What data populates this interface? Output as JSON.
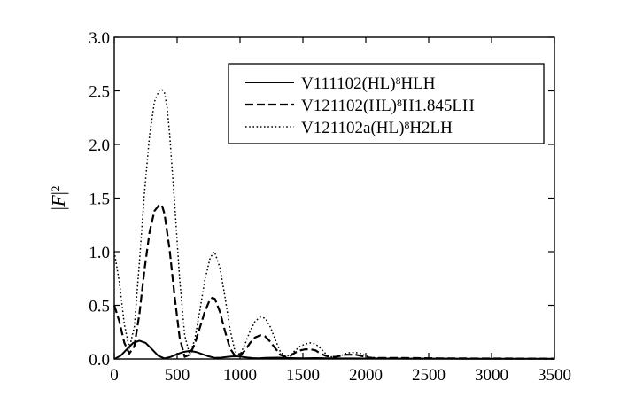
{
  "chart_data": {
    "type": "line",
    "title": "",
    "xlabel": "",
    "ylabel": {
      "parts": [
        {
          "text": "|",
          "italic": false,
          "sup": false
        },
        {
          "text": "F",
          "italic": true,
          "sup": false
        },
        {
          "text": "|",
          "italic": false,
          "sup": false
        },
        {
          "text": "2",
          "italic": false,
          "sup": true
        }
      ]
    },
    "xlim": [
      0,
      3500
    ],
    "ylim": [
      0,
      3.0
    ],
    "xticks": [
      "0",
      "500",
      "1000",
      "1500",
      "2000",
      "2500",
      "3000",
      "3500"
    ],
    "yticks": [
      "0.0",
      "0.5",
      "1.0",
      "1.5",
      "2.0",
      "2.5",
      "3.0"
    ],
    "grid": false,
    "legend_position": "top-right",
    "series": [
      {
        "name": {
          "parts": [
            {
              "text": "V111102(HL)",
              "sup": false
            },
            {
              "text": "8",
              "sup": true
            },
            {
              "text": "HLH",
              "sup": false
            }
          ]
        },
        "style": "solid",
        "x": [
          0,
          50,
          100,
          150,
          200,
          250,
          300,
          350,
          400,
          450,
          500,
          550,
          600,
          650,
          700,
          750,
          800,
          850,
          900,
          950,
          1000,
          1050,
          1100,
          1150,
          1200,
          1300,
          1400,
          1500,
          1600,
          1700,
          1800,
          1900,
          2000,
          2200,
          2400,
          2600,
          2800,
          3000,
          3200,
          3500
        ],
        "y": [
          0.0,
          0.03,
          0.09,
          0.15,
          0.17,
          0.15,
          0.09,
          0.03,
          0.005,
          0.02,
          0.045,
          0.065,
          0.075,
          0.065,
          0.045,
          0.025,
          0.01,
          0.012,
          0.02,
          0.025,
          0.022,
          0.015,
          0.008,
          0.006,
          0.01,
          0.012,
          0.008,
          0.006,
          0.008,
          0.006,
          0.005,
          0.005,
          0.004,
          0.004,
          0.003,
          0.003,
          0.002,
          0.002,
          0.002,
          0.002
        ]
      },
      {
        "name": {
          "parts": [
            {
              "text": "V121102(HL)",
              "sup": false
            },
            {
              "text": "8",
              "sup": true
            },
            {
              "text": "H1.845LH",
              "sup": false
            }
          ]
        },
        "style": "dashed",
        "x": [
          0,
          40,
          80,
          120,
          160,
          200,
          240,
          280,
          320,
          360,
          380,
          400,
          440,
          480,
          520,
          560,
          600,
          640,
          680,
          720,
          760,
          780,
          800,
          840,
          880,
          920,
          960,
          1000,
          1040,
          1080,
          1120,
          1160,
          1180,
          1200,
          1240,
          1280,
          1320,
          1360,
          1400,
          1440,
          1480,
          1520,
          1560,
          1600,
          1640,
          1680,
          1720,
          1760,
          1800,
          1840,
          1880,
          1920,
          1960,
          2000,
          2040,
          2080,
          2200,
          2400,
          2600,
          2800,
          3000,
          3500
        ],
        "y": [
          0.5,
          0.35,
          0.15,
          0.05,
          0.12,
          0.42,
          0.83,
          1.18,
          1.38,
          1.44,
          1.43,
          1.35,
          1.02,
          0.58,
          0.2,
          0.02,
          0.04,
          0.14,
          0.29,
          0.44,
          0.55,
          0.57,
          0.56,
          0.44,
          0.26,
          0.1,
          0.03,
          0.03,
          0.08,
          0.15,
          0.2,
          0.22,
          0.22,
          0.21,
          0.16,
          0.1,
          0.04,
          0.02,
          0.03,
          0.06,
          0.08,
          0.09,
          0.09,
          0.08,
          0.05,
          0.03,
          0.02,
          0.02,
          0.03,
          0.04,
          0.04,
          0.04,
          0.03,
          0.02,
          0.01,
          0.01,
          0.01,
          0.008,
          0.006,
          0.005,
          0.004,
          0.003
        ]
      },
      {
        "name": {
          "parts": [
            {
              "text": "V121102a(HL)",
              "sup": false
            },
            {
              "text": "8",
              "sup": true
            },
            {
              "text": "H2LH",
              "sup": false
            }
          ]
        },
        "style": "dotted",
        "x": [
          0,
          40,
          80,
          120,
          160,
          200,
          240,
          280,
          320,
          360,
          380,
          400,
          420,
          440,
          480,
          520,
          560,
          600,
          640,
          680,
          720,
          760,
          790,
          800,
          840,
          880,
          920,
          960,
          1000,
          1040,
          1080,
          1120,
          1160,
          1200,
          1240,
          1280,
          1320,
          1360,
          1400,
          1440,
          1480,
          1520,
          1560,
          1600,
          1640,
          1680,
          1720,
          1760,
          1800,
          1840,
          1880,
          1920,
          1960,
          2000,
          2040,
          2080,
          2120,
          2200,
          2300,
          2400,
          2600,
          2800,
          3000,
          3500
        ],
        "y": [
          1.0,
          0.72,
          0.32,
          0.1,
          0.3,
          0.9,
          1.55,
          2.08,
          2.4,
          2.51,
          2.51,
          2.48,
          2.35,
          2.1,
          1.45,
          0.75,
          0.22,
          0.04,
          0.18,
          0.45,
          0.73,
          0.93,
          1.0,
          0.99,
          0.85,
          0.58,
          0.28,
          0.07,
          0.04,
          0.14,
          0.26,
          0.35,
          0.39,
          0.38,
          0.3,
          0.18,
          0.07,
          0.02,
          0.04,
          0.08,
          0.12,
          0.14,
          0.15,
          0.14,
          0.1,
          0.05,
          0.02,
          0.02,
          0.03,
          0.05,
          0.06,
          0.06,
          0.05,
          0.03,
          0.015,
          0.01,
          0.01,
          0.008,
          0.006,
          0.005,
          0.004,
          0.003,
          0.003,
          0.002
        ]
      }
    ]
  }
}
